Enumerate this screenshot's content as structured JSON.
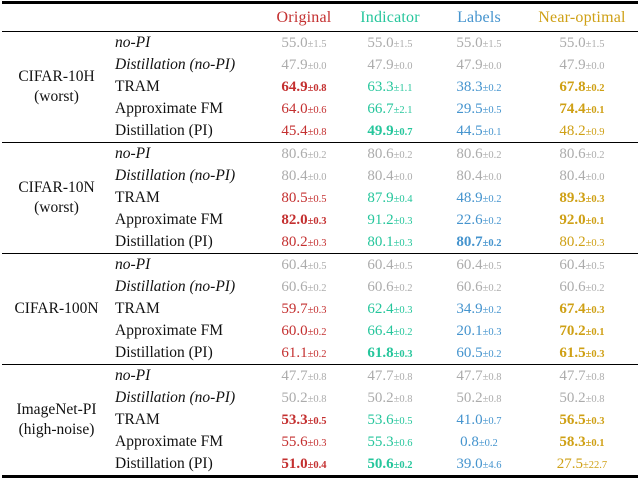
{
  "table": {
    "columns": [
      {
        "label": "Original",
        "color": "#c43030"
      },
      {
        "label": "Indicator",
        "color": "#26c69c"
      },
      {
        "label": "Labels",
        "color": "#4594ce"
      },
      {
        "label": "Near-optimal",
        "color": "#cfa015"
      }
    ],
    "muted_color": "#acacac",
    "blocks": [
      {
        "dataset_lines": [
          "CIFAR-10H",
          "(worst)"
        ],
        "rows": [
          {
            "method": "no-PI",
            "italic": true,
            "muted": true,
            "values": [
              {
                "v": "55.0±1.5"
              },
              {
                "v": "55.0±1.5"
              },
              {
                "v": "55.0±1.5"
              },
              {
                "v": "55.0±1.5"
              }
            ]
          },
          {
            "method": "Distillation (no-PI)",
            "italic": true,
            "muted": true,
            "values": [
              {
                "v": "47.9±0.0"
              },
              {
                "v": "47.9±0.0"
              },
              {
                "v": "47.9±0.0"
              },
              {
                "v": "47.9±0.0"
              }
            ]
          },
          {
            "method": "TRAM",
            "values": [
              {
                "v": "64.9±0.8",
                "bold": true
              },
              {
                "v": "63.3±1.1"
              },
              {
                "v": "38.3±0.2"
              },
              {
                "v": "67.8±0.2",
                "bold": true
              }
            ]
          },
          {
            "method": "Approximate FM",
            "values": [
              {
                "v": "64.0±0.6"
              },
              {
                "v": "66.7±2.1"
              },
              {
                "v": "29.5±0.5"
              },
              {
                "v": "74.4±0.1",
                "bold": true
              }
            ]
          },
          {
            "method": "Distillation (PI)",
            "values": [
              {
                "v": "45.4±0.8"
              },
              {
                "v": "49.9±0.7",
                "bold": true
              },
              {
                "v": "44.5±0.1"
              },
              {
                "v": "48.2±0.9"
              }
            ]
          }
        ]
      },
      {
        "dataset_lines": [
          "CIFAR-10N",
          "(worst)"
        ],
        "rows": [
          {
            "method": "no-PI",
            "italic": true,
            "muted": true,
            "values": [
              {
                "v": "80.6±0.2"
              },
              {
                "v": "80.6±0.2"
              },
              {
                "v": "80.6±0.2"
              },
              {
                "v": "80.6±0.2"
              }
            ]
          },
          {
            "method": "Distillation (no-PI)",
            "italic": true,
            "muted": true,
            "values": [
              {
                "v": "80.4±0.0"
              },
              {
                "v": "80.4±0.0"
              },
              {
                "v": "80.4±0.0"
              },
              {
                "v": "80.4±0.0"
              }
            ]
          },
          {
            "method": "TRAM",
            "values": [
              {
                "v": "80.5±0.5"
              },
              {
                "v": "87.9±0.4"
              },
              {
                "v": "48.9±0.2"
              },
              {
                "v": "89.3±0.3",
                "bold": true
              }
            ]
          },
          {
            "method": "Approximate FM",
            "values": [
              {
                "v": "82.0±0.3",
                "bold": true
              },
              {
                "v": "91.2±0.3"
              },
              {
                "v": "22.6±0.2"
              },
              {
                "v": "92.0±0.1",
                "bold": true
              }
            ]
          },
          {
            "method": "Distillation (PI)",
            "values": [
              {
                "v": "80.2±0.3"
              },
              {
                "v": "80.1±0.3"
              },
              {
                "v": "80.7±0.2",
                "bold": true
              },
              {
                "v": "80.2±0.3"
              }
            ]
          }
        ]
      },
      {
        "dataset_lines": [
          "CIFAR-100N"
        ],
        "rows": [
          {
            "method": "no-PI",
            "italic": true,
            "muted": true,
            "values": [
              {
                "v": "60.4±0.5"
              },
              {
                "v": "60.4±0.5"
              },
              {
                "v": "60.4±0.5"
              },
              {
                "v": "60.4±0.5"
              }
            ]
          },
          {
            "method": "Distillation (no-PI)",
            "italic": true,
            "muted": true,
            "values": [
              {
                "v": "60.6±0.2"
              },
              {
                "v": "60.6±0.2"
              },
              {
                "v": "60.6±0.2"
              },
              {
                "v": "60.6±0.2"
              }
            ]
          },
          {
            "method": "TRAM",
            "values": [
              {
                "v": "59.7±0.3"
              },
              {
                "v": "62.4±0.3"
              },
              {
                "v": "34.9±0.2"
              },
              {
                "v": "67.4±0.3",
                "bold": true
              }
            ]
          },
          {
            "method": "Approximate FM",
            "values": [
              {
                "v": "60.0±0.2"
              },
              {
                "v": "66.4±0.2"
              },
              {
                "v": "20.1±0.3"
              },
              {
                "v": "70.2±0.1",
                "bold": true
              }
            ]
          },
          {
            "method": "Distillation (PI)",
            "values": [
              {
                "v": "61.1±0.2"
              },
              {
                "v": "61.8±0.3",
                "bold": true
              },
              {
                "v": "60.5±0.2"
              },
              {
                "v": "61.5±0.3",
                "bold": true
              }
            ]
          }
        ]
      },
      {
        "dataset_lines": [
          "ImageNet-PI",
          "(high-noise)"
        ],
        "rows": [
          {
            "method": "no-PI",
            "italic": true,
            "muted": true,
            "values": [
              {
                "v": "47.7±0.8"
              },
              {
                "v": "47.7±0.8"
              },
              {
                "v": "47.7±0.8"
              },
              {
                "v": "47.7±0.8"
              }
            ]
          },
          {
            "method": "Distillation (no-PI)",
            "italic": true,
            "muted": true,
            "values": [
              {
                "v": "50.2±0.8"
              },
              {
                "v": "50.2±0.8"
              },
              {
                "v": "50.2±0.8"
              },
              {
                "v": "50.2±0.8"
              }
            ]
          },
          {
            "method": "TRAM",
            "values": [
              {
                "v": "53.3±0.5",
                "bold": true
              },
              {
                "v": "53.6±0.5"
              },
              {
                "v": "41.0±0.7"
              },
              {
                "v": "56.5±0.3",
                "bold": true
              }
            ]
          },
          {
            "method": "Approximate FM",
            "values": [
              {
                "v": "55.6±0.3"
              },
              {
                "v": "55.3±0.6"
              },
              {
                "v": "0.8±0.2"
              },
              {
                "v": "58.3±0.1",
                "bold": true
              }
            ]
          },
          {
            "method": "Distillation (PI)",
            "values": [
              {
                "v": "51.0±0.4",
                "bold": true
              },
              {
                "v": "50.6±0.2",
                "bold": true
              },
              {
                "v": "39.0±4.6"
              },
              {
                "v": "27.5±22.7"
              }
            ]
          }
        ]
      }
    ]
  }
}
